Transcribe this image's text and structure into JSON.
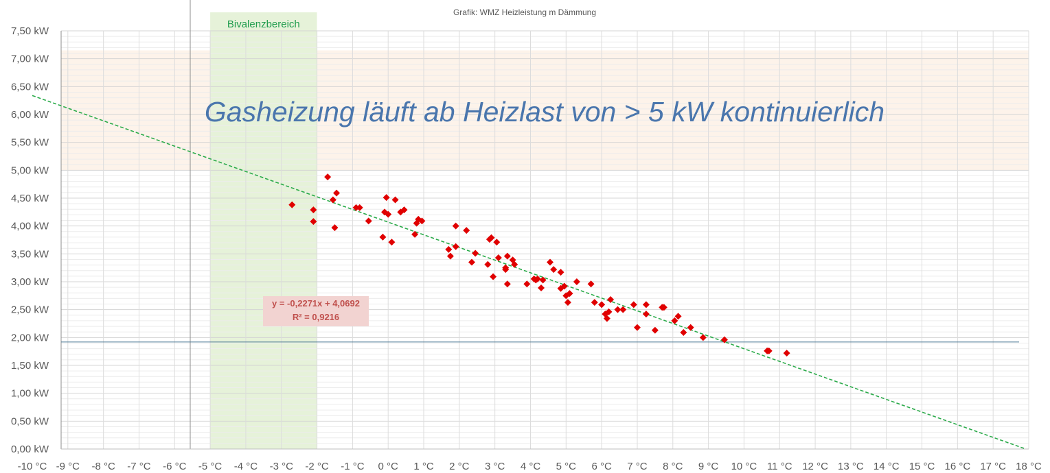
{
  "chart_data": {
    "type": "scatter",
    "title": "Grafik: WMZ Heizleistung m Dämmung",
    "xlabel": "",
    "ylabel": "",
    "xlim": [
      -10,
      18
    ],
    "ylim": [
      0,
      7.5
    ],
    "x_ticks": [
      "-10 °C",
      "-9 °C",
      "-8 °C",
      "-7 °C",
      "-6 °C",
      "-5 °C",
      "-4 °C",
      "-3 °C",
      "-2 °C",
      "-1 °C",
      "0 °C",
      "1 °C",
      "2 °C",
      "3 °C",
      "4 °C",
      "5 °C",
      "6 °C",
      "7 °C",
      "8 °C",
      "9 °C",
      "10 °C",
      "11 °C",
      "12 °C",
      "13 °C",
      "14 °C",
      "15 °C",
      "16 °C",
      "17 °C",
      "18 °C"
    ],
    "y_ticks": [
      "0,00 kW",
      "0,50 kW",
      "1,00 kW",
      "1,50 kW",
      "2,00 kW",
      "2,50 kW",
      "3,00 kW",
      "3,50 kW",
      "4,00 kW",
      "4,50 kW",
      "5,00 kW",
      "5,50 kW",
      "6,00 kW",
      "6,50 kW",
      "7,00 kW",
      "7,50 kW"
    ],
    "grid": true,
    "colors": {
      "points": "#e00000",
      "trendline": "#2bab4a",
      "bivalence_zone": "#e6f2d9",
      "gas_zone": "#fdf3ea",
      "reference_line": "#4f7b96"
    },
    "series": [
      {
        "points": [
          [
            -2.7,
            4.38
          ],
          [
            -1.7,
            4.88
          ],
          [
            -2.1,
            4.29
          ],
          [
            -2.1,
            4.08
          ],
          [
            -1.55,
            4.47
          ],
          [
            -1.45,
            4.59
          ],
          [
            -1.5,
            3.97
          ],
          [
            -0.9,
            4.33
          ],
          [
            -0.8,
            4.33
          ],
          [
            -0.55,
            4.09
          ],
          [
            -0.15,
            3.8
          ],
          [
            -0.1,
            4.25
          ],
          [
            -0.05,
            4.51
          ],
          [
            0.0,
            4.21
          ],
          [
            0.1,
            3.71
          ],
          [
            0.2,
            4.47
          ],
          [
            0.35,
            4.25
          ],
          [
            0.45,
            4.29
          ],
          [
            0.75,
            3.85
          ],
          [
            0.8,
            4.05
          ],
          [
            0.85,
            4.12
          ],
          [
            0.95,
            4.09
          ],
          [
            1.7,
            3.58
          ],
          [
            1.75,
            3.46
          ],
          [
            1.9,
            4.0
          ],
          [
            1.9,
            3.63
          ],
          [
            2.2,
            3.92
          ],
          [
            2.35,
            3.35
          ],
          [
            2.45,
            3.51
          ],
          [
            2.8,
            3.31
          ],
          [
            2.85,
            3.76
          ],
          [
            2.9,
            3.79
          ],
          [
            2.95,
            3.09
          ],
          [
            3.05,
            3.71
          ],
          [
            3.1,
            3.43
          ],
          [
            3.3,
            3.25
          ],
          [
            3.3,
            3.22
          ],
          [
            3.35,
            3.46
          ],
          [
            3.35,
            2.96
          ],
          [
            3.5,
            3.39
          ],
          [
            3.55,
            3.31
          ],
          [
            3.9,
            2.96
          ],
          [
            4.1,
            3.05
          ],
          [
            4.15,
            3.03
          ],
          [
            4.2,
            3.05
          ],
          [
            4.3,
            2.89
          ],
          [
            4.35,
            3.03
          ],
          [
            4.55,
            3.35
          ],
          [
            4.65,
            3.22
          ],
          [
            4.85,
            3.17
          ],
          [
            4.85,
            2.88
          ],
          [
            4.95,
            2.92
          ],
          [
            5.0,
            2.75
          ],
          [
            5.05,
            2.63
          ],
          [
            5.1,
            2.79
          ],
          [
            5.3,
            3.0
          ],
          [
            5.7,
            2.96
          ],
          [
            5.8,
            2.63
          ],
          [
            6.0,
            2.59
          ],
          [
            6.1,
            2.42
          ],
          [
            6.15,
            2.34
          ],
          [
            6.2,
            2.46
          ],
          [
            6.25,
            2.68
          ],
          [
            6.45,
            2.5
          ],
          [
            6.6,
            2.5
          ],
          [
            6.9,
            2.59
          ],
          [
            7.0,
            2.18
          ],
          [
            7.25,
            2.59
          ],
          [
            7.25,
            2.42
          ],
          [
            7.5,
            2.13
          ],
          [
            7.7,
            2.54
          ],
          [
            7.75,
            2.54
          ],
          [
            8.05,
            2.3
          ],
          [
            8.15,
            2.38
          ],
          [
            8.3,
            2.09
          ],
          [
            8.5,
            2.18
          ],
          [
            8.85,
            2.0
          ],
          [
            9.45,
            1.96
          ],
          [
            10.65,
            1.76
          ],
          [
            10.7,
            1.76
          ],
          [
            11.2,
            1.72
          ]
        ]
      }
    ],
    "trendline": {
      "slope": -0.2271,
      "intercept": 4.0692,
      "style": "dashed"
    },
    "equation_label": "y = -0,2271x + 4,0692",
    "r2_label": "R² = 0,9216",
    "reference_line_y": 1.92,
    "bivalence_zone_x": [
      -5,
      -2
    ],
    "bivalence_label": "Bivalenzbereich",
    "gas_zone_y": [
      5.0,
      7.15
    ],
    "gas_banner": "Gasheizung läuft ab Heizlast von > 5 kW kontinuierlich"
  }
}
